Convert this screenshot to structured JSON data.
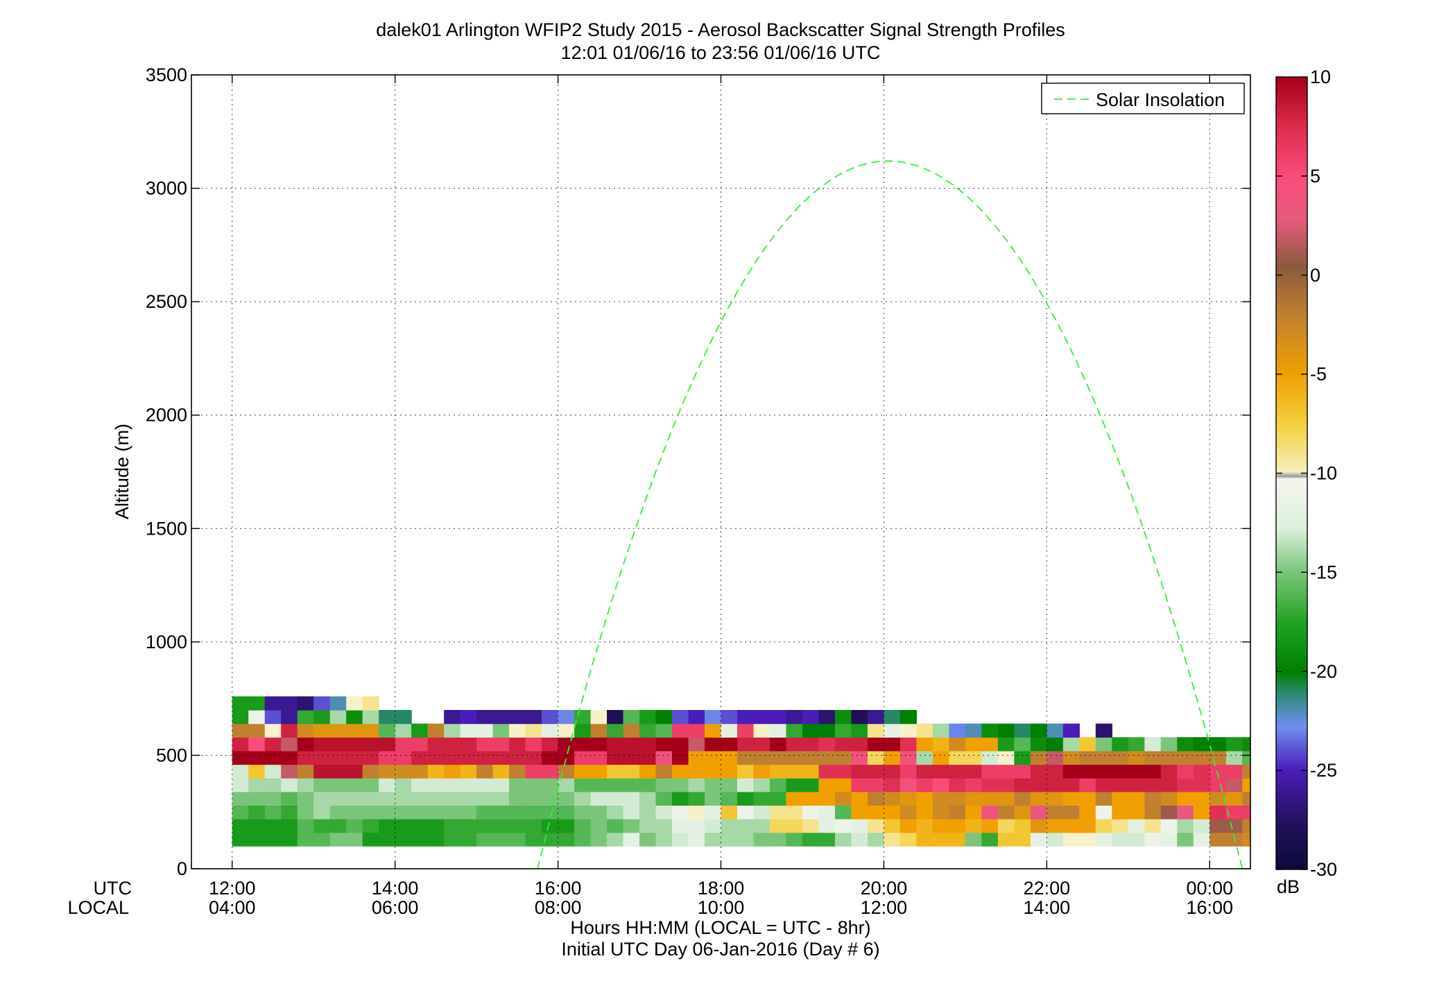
{
  "chart_data": {
    "type": "heatmap",
    "title": "dalek01 Arlington WFIP2 Study 2015 - Aerosol Backscatter Signal Strength Profiles",
    "subtitle": "12:01 01/06/16 to 23:56 01/06/16  UTC",
    "ylabel": "Altitude (m)",
    "xlabel": "Hours HH:MM  (LOCAL = UTC - 8hr)",
    "xlabel2": "Initial UTC Day 06-Jan-2016 (Day # 6)",
    "x_row_labels": [
      "UTC",
      "LOCAL"
    ],
    "x_ticks_hours": [
      12,
      14,
      16,
      18,
      20,
      22,
      24
    ],
    "x_tick_labels_utc": [
      "12:00",
      "14:00",
      "16:00",
      "18:00",
      "20:00",
      "22:00",
      "00:00"
    ],
    "x_tick_labels_local": [
      "04:00",
      "06:00",
      "08:00",
      "10:00",
      "12:00",
      "14:00",
      "16:00"
    ],
    "xlim_hours": [
      11.5,
      24.5
    ],
    "ylim": [
      0,
      3500
    ],
    "y_ticks": [
      0,
      500,
      1000,
      1500,
      2000,
      2500,
      3000,
      3500
    ],
    "y_tick_labels": [
      "0",
      "500",
      "1000",
      "1500",
      "2000",
      "2500",
      "3000",
      "3500"
    ],
    "grid": true,
    "legend": {
      "position": "top-right",
      "entries": [
        "Solar Insolation"
      ]
    },
    "colorbar": {
      "range": [
        -30,
        10
      ],
      "ticks": [
        10,
        5,
        0,
        -5,
        -10,
        -15,
        -20,
        -25,
        -30
      ],
      "tick_labels": [
        "10",
        "5",
        "0",
        "-5",
        "-10",
        "-15",
        "-20",
        "-25",
        "-30"
      ],
      "unit": "dB"
    },
    "heatmap": {
      "x_start_hour": 12.0,
      "x_step_hour": 0.2,
      "y_bottom_m": 100,
      "y_step_m": 60,
      "columns": [
        [
          -18,
          -18,
          -16,
          -15,
          -13,
          -13,
          10,
          8,
          -2,
          -18,
          -18
        ],
        [
          -18,
          -18,
          -17,
          -15,
          -14,
          -7,
          10,
          5,
          -2,
          -11,
          -18
        ],
        [
          -18,
          -18,
          -16,
          -15,
          -14,
          -13,
          10,
          8,
          -10,
          -24,
          -26
        ],
        [
          -18,
          -18,
          -17,
          -16,
          -13,
          2,
          10,
          2,
          8,
          -26,
          -26
        ],
        [
          -16,
          -16,
          -15,
          -15,
          -14,
          -2,
          8,
          10,
          -3,
          -17,
          -27
        ],
        [
          -16,
          -17,
          -14,
          -14,
          -15,
          9,
          8,
          9,
          -4,
          -18,
          -24
        ],
        [
          -15,
          -17,
          -15,
          -14,
          -15,
          9,
          8,
          9,
          -4,
          -14,
          -22
        ],
        [
          -15,
          -16,
          -15,
          -14,
          -15,
          9,
          8,
          9,
          -4,
          -19,
          -10
        ],
        [
          -18,
          -17,
          -15,
          -14,
          -15,
          -2,
          8,
          9,
          -4,
          -14,
          -9
        ],
        [
          -18,
          -18,
          -15,
          -14,
          -13,
          -3,
          6,
          9,
          -16,
          -21
        ],
        [
          -18,
          -18,
          -15,
          -14,
          -14,
          -3,
          6,
          6,
          -14,
          -21
        ],
        [
          -18,
          -18,
          -15,
          -14,
          -13,
          -3,
          8,
          6,
          -18
        ],
        [
          -18,
          -18,
          -15,
          -14,
          -13,
          -6,
          8,
          8,
          -2
        ],
        [
          -17,
          -17,
          -15,
          -14,
          -13,
          -5,
          8,
          8,
          -14,
          -26
        ],
        [
          -17,
          -17,
          -15,
          -14,
          -13,
          -6,
          8,
          8,
          -12,
          -25
        ],
        [
          -16,
          -17,
          -16,
          -14,
          -13,
          -2,
          8,
          6,
          -12,
          -26
        ],
        [
          -16,
          -17,
          -16,
          -14,
          -13,
          -6,
          8,
          6,
          -15,
          -26
        ],
        [
          -16,
          -17,
          -16,
          -15,
          -15,
          -2,
          8,
          8,
          -10,
          -26
        ],
        [
          -17,
          -17,
          -16,
          -15,
          -15,
          6,
          8,
          6,
          -9,
          -26
        ],
        [
          -17,
          -18,
          -16,
          -15,
          -15,
          6,
          10,
          8,
          -12,
          -24
        ],
        [
          -17,
          -18,
          -16,
          -15,
          -14,
          -2,
          10,
          10,
          -10,
          -23
        ],
        [
          -16,
          -16,
          -15,
          -14,
          -16,
          -5,
          6,
          10,
          -18,
          -17
        ],
        [
          -15,
          -15,
          -15,
          -13,
          -16,
          -5,
          6,
          10,
          -2,
          -10
        ],
        [
          -14,
          -16,
          -14,
          -13,
          -16,
          -7,
          9,
          9,
          -17,
          -28
        ],
        [
          -12,
          -15,
          -13,
          -13,
          -16,
          -7,
          9,
          9,
          -2,
          -16
        ],
        [
          -15,
          -14,
          -14,
          -14,
          -16,
          -5,
          9,
          9,
          -17,
          -18
        ],
        [
          -14,
          -14,
          -13,
          -16,
          -15,
          -2,
          4,
          10,
          -16,
          -20
        ],
        [
          -13,
          -12,
          -11,
          -18,
          -15,
          -5,
          10,
          10,
          6,
          -24
        ],
        [
          -12,
          -12,
          -10,
          -17,
          -14,
          -5,
          -5,
          2,
          6,
          -25
        ],
        [
          -14,
          -13,
          -12,
          -15,
          -15,
          -5,
          -5,
          10,
          -5,
          -23
        ],
        [
          -14,
          -14,
          -7,
          -16,
          -15,
          -5,
          -5,
          10,
          -12,
          -24
        ],
        [
          -14,
          -14,
          -11,
          -18,
          -13,
          -7,
          -2,
          8,
          6,
          -25
        ],
        [
          -15,
          -14,
          -13,
          -17,
          -14,
          -5,
          -2,
          8,
          -10,
          -25
        ],
        [
          -15,
          -8,
          -9,
          -17,
          -16,
          -6,
          -2,
          10,
          -12,
          -25
        ],
        [
          -16,
          -8,
          -9,
          -5,
          -18,
          -6,
          -2,
          8,
          -17,
          -26
        ],
        [
          -17,
          -9,
          -11,
          -5,
          -18,
          -6,
          -2,
          8,
          -20,
          -25
        ],
        [
          -17,
          -12,
          -12,
          -5,
          -5,
          7,
          -2,
          7,
          -20,
          -27
        ],
        [
          -14,
          -11,
          -16,
          -3,
          -5,
          7,
          -2,
          8,
          -17,
          -19
        ],
        [
          -13,
          -12,
          -5,
          -5,
          6,
          8,
          4,
          8,
          -18,
          -28
        ],
        [
          -14,
          -9,
          -5,
          -2,
          6,
          8,
          -8,
          10,
          -9,
          -26
        ],
        [
          -9,
          -7,
          -5,
          -3,
          7,
          8,
          -5,
          10,
          -12,
          -21
        ],
        [
          -8,
          -5,
          -3,
          -4,
          4,
          6,
          4,
          7,
          -10,
          -20
        ],
        [
          -6,
          -6,
          -5,
          -5,
          6,
          8,
          -14,
          -5,
          -9
        ],
        [
          -6,
          -5,
          -3,
          -3,
          5,
          8,
          -5,
          -6,
          -14
        ],
        [
          -6,
          -5,
          -2,
          -3,
          7,
          8,
          -8,
          -3,
          -23
        ],
        [
          -15,
          -6,
          -5,
          -4,
          6,
          8,
          -8,
          -5,
          -22
        ],
        [
          -17,
          -5,
          4,
          -4,
          7,
          6,
          -13,
          -5,
          -19
        ],
        [
          -7,
          -8,
          -2,
          -4,
          7,
          6,
          -10,
          -18,
          -20
        ],
        [
          -7,
          -7,
          -4,
          -2,
          8,
          6,
          -18,
          -16,
          -21
        ],
        [
          -12,
          -4,
          3,
          -4,
          8,
          8,
          -2,
          -19,
          -20
        ],
        [
          -13,
          -5,
          -2,
          -4,
          8,
          8,
          2,
          -20,
          -22
        ],
        [
          -10,
          -5,
          -2,
          -5,
          8,
          10,
          -3,
          -14,
          -25
        ],
        [
          -10,
          -5,
          -5,
          -5,
          6,
          10,
          -2,
          -7
        ],
        [
          -12,
          -8,
          -11,
          -2,
          8,
          10,
          -2,
          -15,
          -27
        ],
        [
          -13,
          -9,
          -5,
          -5,
          8,
          10,
          -2,
          -18
        ],
        [
          -13,
          -12,
          -5,
          -5,
          8,
          10,
          -3,
          -17
        ],
        [
          -11,
          -9,
          -2,
          -2,
          8,
          10,
          -2,
          -13
        ],
        [
          -12,
          -11,
          1,
          -3,
          8,
          8,
          -2,
          -15
        ],
        [
          -15,
          -14,
          3,
          -5,
          7,
          6,
          -2,
          -19
        ],
        [
          -12,
          -13,
          -5,
          -5,
          7,
          7,
          -2,
          -20
        ],
        [
          -2,
          1,
          7,
          -3,
          6,
          6,
          -2,
          -20
        ],
        [
          -2,
          1,
          6,
          -4,
          2,
          6,
          -14,
          -18
        ],
        [
          -3,
          -2,
          6,
          -2,
          -5,
          -2,
          -16,
          -19
        ]
      ]
    },
    "solar_insolation_curve": {
      "peak_hour": 20.05,
      "peak_altitude_m": 3120,
      "start_hour": 15.75,
      "end_hour": 24.4
    }
  }
}
